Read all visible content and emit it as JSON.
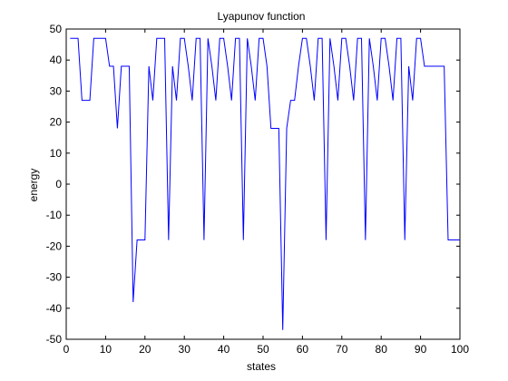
{
  "chart_data": {
    "type": "line",
    "title": "Lyapunov function",
    "xlabel": "states",
    "ylabel": "energy",
    "xlim": [
      0,
      100
    ],
    "ylim": [
      -50,
      50
    ],
    "xticks": [
      0,
      10,
      20,
      30,
      40,
      50,
      60,
      70,
      80,
      90,
      100
    ],
    "yticks": [
      -50,
      -40,
      -30,
      -20,
      -10,
      0,
      10,
      20,
      30,
      40,
      50
    ],
    "grid": false,
    "legend": "none",
    "series": [
      {
        "color": "#0000ff",
        "x": [
          1,
          2,
          3,
          4,
          5,
          6,
          7,
          8,
          9,
          10,
          11,
          12,
          13,
          14,
          15,
          16,
          17,
          18,
          19,
          20,
          21,
          22,
          23,
          24,
          25,
          26,
          27,
          28,
          29,
          30,
          31,
          32,
          33,
          34,
          35,
          36,
          37,
          38,
          39,
          40,
          41,
          42,
          43,
          44,
          45,
          46,
          47,
          48,
          49,
          50,
          51,
          52,
          53,
          54,
          55,
          56,
          57,
          58,
          59,
          60,
          61,
          62,
          63,
          64,
          65,
          66,
          67,
          68,
          69,
          70,
          71,
          72,
          73,
          74,
          75,
          76,
          77,
          78,
          79,
          80,
          81,
          82,
          83,
          84,
          85,
          86,
          87,
          88,
          89,
          90,
          91,
          92,
          93,
          94,
          95,
          96,
          97,
          98,
          99,
          100
        ],
        "y": [
          47,
          47,
          47,
          27,
          27,
          27,
          47,
          47,
          47,
          47,
          38,
          38,
          18,
          38,
          38,
          38,
          -38,
          -18,
          -18,
          -18,
          38,
          27,
          47,
          47,
          47,
          -18,
          38,
          27,
          47,
          47,
          38,
          27,
          47,
          47,
          -18,
          47,
          38,
          27,
          47,
          47,
          38,
          27,
          47,
          47,
          -18,
          47,
          38,
          27,
          47,
          47,
          38,
          18,
          18,
          18,
          -47,
          18,
          27,
          27,
          38,
          47,
          47,
          38,
          27,
          47,
          47,
          -18,
          47,
          38,
          27,
          47,
          47,
          38,
          27,
          47,
          47,
          -18,
          47,
          38,
          27,
          47,
          47,
          38,
          27,
          47,
          47,
          -18,
          38,
          27,
          47,
          47,
          38,
          38,
          38,
          38,
          38,
          38,
          -18,
          -18,
          -18,
          -18
        ]
      }
    ]
  }
}
